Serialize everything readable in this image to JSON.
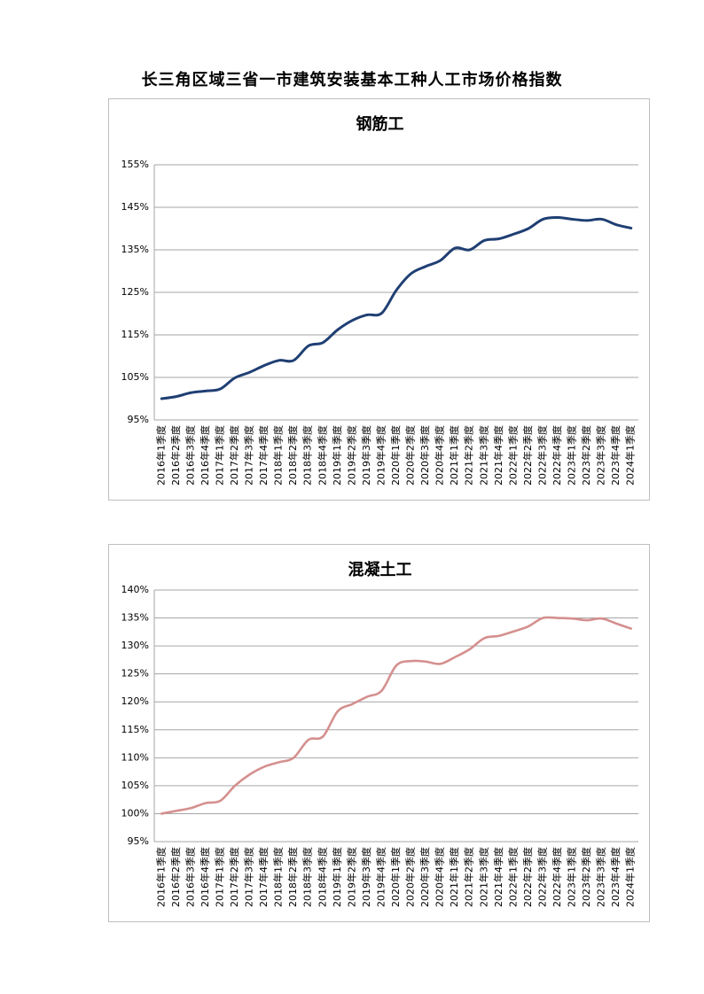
{
  "page": {
    "title": "长三角区域三省一市建筑安装基本工种人工市场价格指数"
  },
  "chart_data": [
    {
      "type": "line",
      "title": "钢筋工",
      "xlabel": "",
      "ylabel": "",
      "ylim": [
        95,
        155
      ],
      "yticks": [
        "95%",
        "105%",
        "115%",
        "125%",
        "135%",
        "145%",
        "155%"
      ],
      "ytick_values": [
        95,
        105,
        115,
        125,
        135,
        145,
        155
      ],
      "grid": true,
      "legend": "none",
      "color": "#1f3f73",
      "categories": [
        "2016年1季度",
        "2016年2季度",
        "2016年3季度",
        "2016年4季度",
        "2017年1季度",
        "2017年2季度",
        "2017年3季度",
        "2017年4季度",
        "2018年1季度",
        "2018年2季度",
        "2018年3季度",
        "2018年4季度",
        "2019年1季度",
        "2019年2季度",
        "2019年3季度",
        "2019年4季度",
        "2020年1季度",
        "2020年2季度",
        "2020年3季度",
        "2020年4季度",
        "2021年1季度",
        "2021年2季度",
        "2021年3季度",
        "2021年4季度",
        "2022年1季度",
        "2022年2季度",
        "2022年3季度",
        "2022年4季度",
        "2023年1季度",
        "2023年2季度",
        "2023年3季度",
        "2023年4季度",
        "2024年1季度"
      ],
      "values": [
        100.0,
        100.5,
        101.4,
        101.8,
        102.3,
        104.9,
        106.2,
        107.8,
        109.0,
        109.0,
        112.4,
        113.2,
        116.2,
        118.4,
        119.7,
        120.1,
        125.5,
        129.4,
        131.1,
        132.5,
        135.4,
        135.0,
        137.2,
        137.6,
        138.7,
        140.0,
        142.2,
        142.6,
        142.2,
        141.9,
        142.2,
        140.9,
        140.1
      ]
    },
    {
      "type": "line",
      "title": "混凝土工",
      "xlabel": "",
      "ylabel": "",
      "ylim": [
        95,
        140
      ],
      "yticks": [
        "95%",
        "100%",
        "105%",
        "110%",
        "115%",
        "120%",
        "125%",
        "130%",
        "135%",
        "140%"
      ],
      "ytick_values": [
        95,
        100,
        105,
        110,
        115,
        120,
        125,
        130,
        135,
        140
      ],
      "grid": true,
      "legend": "none",
      "color": "#d4908e",
      "categories": [
        "2016年1季度",
        "2016年2季度",
        "2016年3季度",
        "2016年4季度",
        "2017年1季度",
        "2017年2季度",
        "2017年3季度",
        "2017年4季度",
        "2018年1季度",
        "2018年2季度",
        "2018年3季度",
        "2018年4季度",
        "2019年1季度",
        "2019年2季度",
        "2019年3季度",
        "2019年4季度",
        "2020年1季度",
        "2020年2季度",
        "2020年3季度",
        "2020年4季度",
        "2021年1季度",
        "2021年2季度",
        "2021年3季度",
        "2021年4季度",
        "2022年1季度",
        "2022年2季度",
        "2022年3季度",
        "2022年4季度",
        "2023年1季度",
        "2023年2季度",
        "2023年3季度",
        "2023年4季度",
        "2024年1季度"
      ],
      "values": [
        100.0,
        100.5,
        101.0,
        101.9,
        102.3,
        105.0,
        107.0,
        108.4,
        109.2,
        110.0,
        113.2,
        113.8,
        118.3,
        119.6,
        120.9,
        122.0,
        126.5,
        127.3,
        127.2,
        126.8,
        128.0,
        129.4,
        131.4,
        131.8,
        132.6,
        133.5,
        135.0,
        135.0,
        134.9,
        134.6,
        134.9,
        134.0,
        133.1
      ]
    }
  ]
}
